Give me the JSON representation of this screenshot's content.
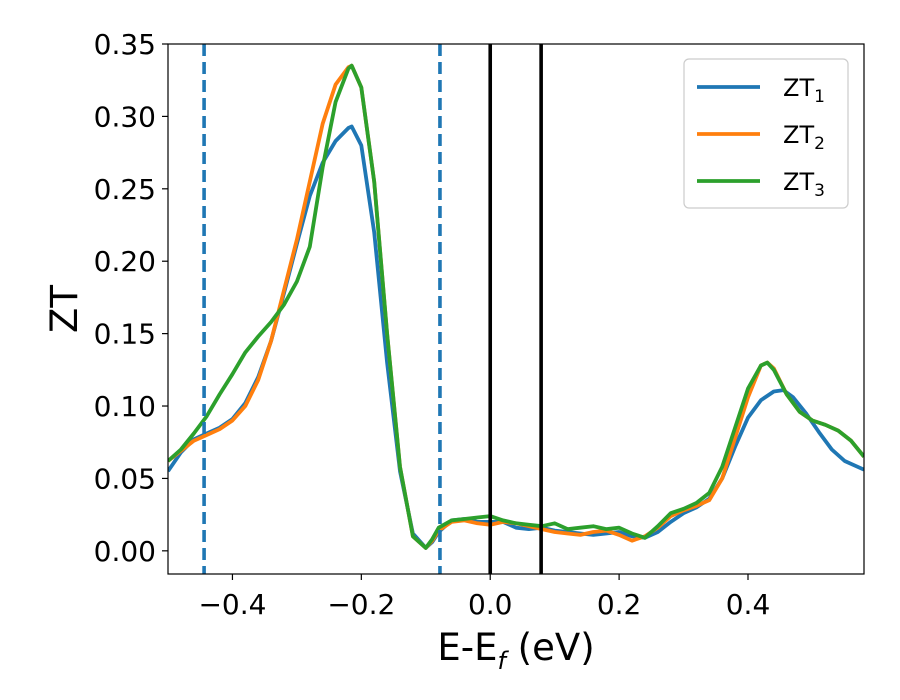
{
  "chart_data": {
    "type": "line",
    "xlabel": {
      "main": "E-E",
      "sub": "f",
      "unit": " (eV)"
    },
    "ylabel": "ZT",
    "xlim": [
      -0.5,
      0.58
    ],
    "ylim": [
      -0.016,
      0.35
    ],
    "grid": false,
    "legend_position": "top-right",
    "x_ticks": [
      {
        "value": -0.4,
        "label": "−0.4"
      },
      {
        "value": -0.2,
        "label": "−0.2"
      },
      {
        "value": 0.0,
        "label": "0.0"
      },
      {
        "value": 0.2,
        "label": "0.2"
      },
      {
        "value": 0.4,
        "label": "0.4"
      }
    ],
    "y_ticks": [
      {
        "value": 0.0,
        "label": "0.00"
      },
      {
        "value": 0.05,
        "label": "0.05"
      },
      {
        "value": 0.1,
        "label": "0.10"
      },
      {
        "value": 0.15,
        "label": "0.15"
      },
      {
        "value": 0.2,
        "label": "0.20"
      },
      {
        "value": 0.25,
        "label": "0.25"
      },
      {
        "value": 0.3,
        "label": "0.30"
      },
      {
        "value": 0.35,
        "label": "0.35"
      }
    ],
    "vlines": [
      {
        "x": -0.444,
        "style": "dashed",
        "color": "#1f77b4"
      },
      {
        "x": -0.078,
        "style": "dashed",
        "color": "#1f77b4"
      },
      {
        "x": 0.0,
        "style": "solid",
        "color": "#000000"
      },
      {
        "x": 0.079,
        "style": "solid",
        "color": "#000000"
      }
    ],
    "series": [
      {
        "name": "ZT",
        "sub": "1",
        "color": "#1f77b4",
        "x": [
          -0.5,
          -0.48,
          -0.46,
          -0.44,
          -0.42,
          -0.4,
          -0.38,
          -0.36,
          -0.34,
          -0.32,
          -0.3,
          -0.28,
          -0.26,
          -0.24,
          -0.22,
          -0.215,
          -0.2,
          -0.18,
          -0.16,
          -0.14,
          -0.12,
          -0.1,
          -0.09,
          -0.08,
          -0.06,
          -0.04,
          -0.02,
          0.0,
          0.02,
          0.04,
          0.06,
          0.08,
          0.1,
          0.12,
          0.14,
          0.16,
          0.18,
          0.2,
          0.22,
          0.24,
          0.26,
          0.28,
          0.3,
          0.32,
          0.34,
          0.36,
          0.38,
          0.4,
          0.42,
          0.44,
          0.455,
          0.47,
          0.49,
          0.51,
          0.53,
          0.55,
          0.58
        ],
        "y": [
          0.055,
          0.068,
          0.077,
          0.081,
          0.085,
          0.091,
          0.102,
          0.12,
          0.145,
          0.178,
          0.212,
          0.245,
          0.268,
          0.283,
          0.292,
          0.293,
          0.28,
          0.22,
          0.13,
          0.055,
          0.012,
          0.002,
          0.006,
          0.013,
          0.021,
          0.022,
          0.02,
          0.02,
          0.02,
          0.016,
          0.015,
          0.016,
          0.014,
          0.013,
          0.012,
          0.011,
          0.012,
          0.013,
          0.01,
          0.009,
          0.013,
          0.02,
          0.026,
          0.03,
          0.036,
          0.05,
          0.072,
          0.092,
          0.104,
          0.11,
          0.111,
          0.106,
          0.095,
          0.082,
          0.07,
          0.062,
          0.056
        ]
      },
      {
        "name": "ZT",
        "sub": "2",
        "color": "#ff7f0e",
        "x": [
          -0.5,
          -0.48,
          -0.46,
          -0.44,
          -0.42,
          -0.4,
          -0.38,
          -0.36,
          -0.34,
          -0.32,
          -0.3,
          -0.28,
          -0.26,
          -0.24,
          -0.22,
          -0.215,
          -0.2,
          -0.18,
          -0.16,
          -0.14,
          -0.12,
          -0.1,
          -0.09,
          -0.08,
          -0.06,
          -0.04,
          -0.02,
          0.0,
          0.02,
          0.04,
          0.06,
          0.08,
          0.1,
          0.12,
          0.14,
          0.16,
          0.18,
          0.2,
          0.22,
          0.24,
          0.26,
          0.28,
          0.3,
          0.32,
          0.34,
          0.36,
          0.38,
          0.4,
          0.42,
          0.43,
          0.44,
          0.46,
          0.48,
          0.5,
          0.52,
          0.54,
          0.56,
          0.58
        ],
        "y": [
          0.062,
          0.069,
          0.076,
          0.08,
          0.084,
          0.09,
          0.1,
          0.118,
          0.145,
          0.18,
          0.215,
          0.255,
          0.295,
          0.322,
          0.334,
          0.335,
          0.32,
          0.255,
          0.15,
          0.058,
          0.01,
          0.002,
          0.007,
          0.014,
          0.02,
          0.021,
          0.019,
          0.018,
          0.02,
          0.019,
          0.017,
          0.015,
          0.013,
          0.012,
          0.011,
          0.013,
          0.014,
          0.011,
          0.007,
          0.01,
          0.016,
          0.024,
          0.028,
          0.031,
          0.035,
          0.05,
          0.078,
          0.106,
          0.128,
          0.13,
          0.126,
          0.108,
          0.096,
          0.09,
          0.087,
          0.083,
          0.076,
          0.065
        ]
      },
      {
        "name": "ZT",
        "sub": "3",
        "color": "#2ca02c",
        "x": [
          -0.5,
          -0.48,
          -0.46,
          -0.44,
          -0.42,
          -0.4,
          -0.38,
          -0.36,
          -0.34,
          -0.32,
          -0.3,
          -0.28,
          -0.26,
          -0.24,
          -0.22,
          -0.215,
          -0.2,
          -0.18,
          -0.16,
          -0.14,
          -0.12,
          -0.1,
          -0.09,
          -0.08,
          -0.06,
          -0.04,
          -0.02,
          0.0,
          0.02,
          0.04,
          0.06,
          0.08,
          0.1,
          0.12,
          0.14,
          0.16,
          0.18,
          0.2,
          0.22,
          0.24,
          0.26,
          0.28,
          0.3,
          0.32,
          0.34,
          0.36,
          0.38,
          0.4,
          0.42,
          0.43,
          0.44,
          0.46,
          0.48,
          0.5,
          0.52,
          0.54,
          0.56,
          0.58
        ],
        "y": [
          0.062,
          0.07,
          0.081,
          0.093,
          0.108,
          0.122,
          0.137,
          0.148,
          0.158,
          0.17,
          0.186,
          0.21,
          0.265,
          0.31,
          0.333,
          0.335,
          0.32,
          0.255,
          0.15,
          0.058,
          0.01,
          0.002,
          0.008,
          0.016,
          0.021,
          0.022,
          0.023,
          0.024,
          0.021,
          0.019,
          0.018,
          0.017,
          0.019,
          0.015,
          0.016,
          0.017,
          0.015,
          0.016,
          0.012,
          0.009,
          0.017,
          0.026,
          0.029,
          0.033,
          0.04,
          0.058,
          0.085,
          0.112,
          0.128,
          0.13,
          0.125,
          0.108,
          0.096,
          0.09,
          0.087,
          0.083,
          0.076,
          0.065
        ]
      }
    ]
  }
}
